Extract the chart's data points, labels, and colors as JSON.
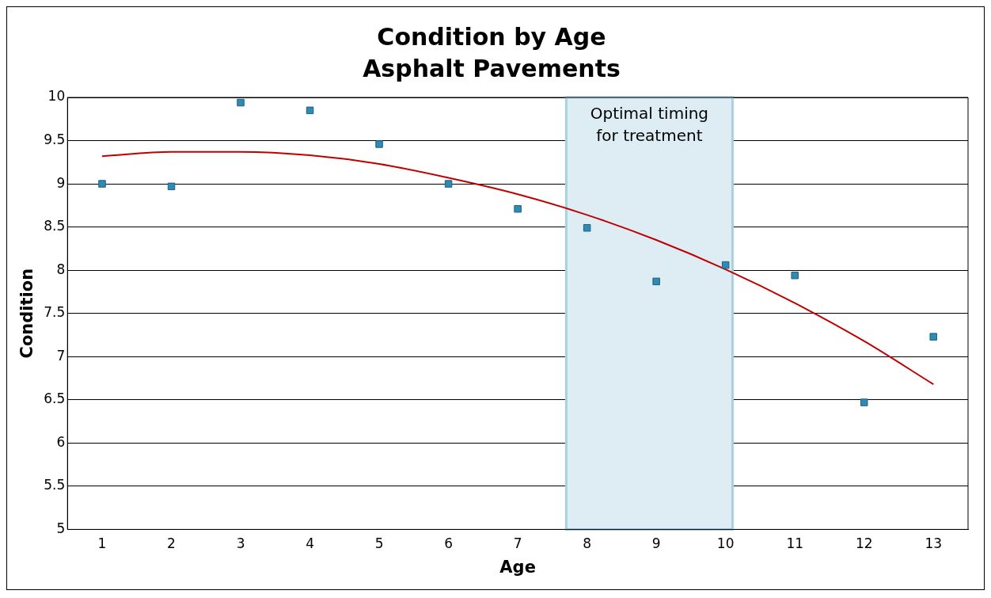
{
  "chart_data": {
    "type": "scatter",
    "title": "Condition by Age",
    "subtitle": "Asphalt Pavements",
    "xlabel": "Age",
    "ylabel": "Condition",
    "x": [
      1,
      2,
      3,
      4,
      5,
      6,
      7,
      8,
      9,
      10,
      11,
      12,
      13
    ],
    "series": [
      {
        "color": "#2e8bb3",
        "values": [
          9.0,
          8.97,
          9.94,
          9.85,
          9.46,
          9.0,
          8.71,
          8.49,
          7.87,
          8.06,
          7.94,
          6.47,
          7.23
        ]
      },
      {
        "type": "line",
        "color": "#c00000",
        "x": [
          1,
          2,
          3,
          4,
          5,
          6,
          7,
          8,
          9,
          10,
          11,
          12,
          13
        ],
        "values": [
          9.32,
          9.37,
          9.37,
          9.33,
          9.23,
          9.07,
          8.88,
          8.64,
          8.35,
          8.01,
          7.62,
          7.18,
          6.68
        ],
        "marker": "none"
      }
    ],
    "xlim": [
      0.5,
      13.5
    ],
    "xticks": [
      1,
      2,
      3,
      4,
      5,
      6,
      7,
      8,
      9,
      10,
      11,
      12,
      13
    ],
    "ylim": [
      5,
      10
    ],
    "yticks": [
      5,
      5.5,
      6,
      6.5,
      7,
      7.5,
      8,
      8.5,
      9,
      9.5,
      10
    ],
    "bands": [
      {
        "axis": "x",
        "from": 7.7,
        "to": 10.1,
        "label": "Optimal timing for treatment",
        "color": "#deedf4"
      }
    ],
    "grid": "y",
    "legend": false,
    "marker": "square"
  }
}
